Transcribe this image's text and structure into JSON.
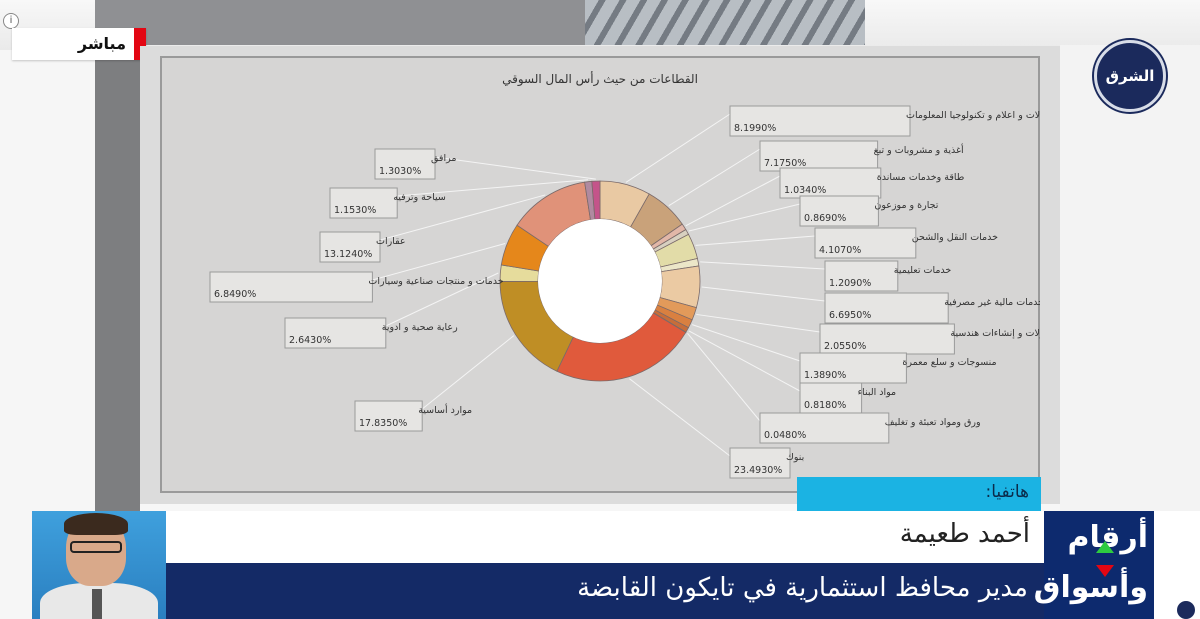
{
  "live": {
    "label": "مباشر"
  },
  "broadcaster": {
    "logo_text": "الشرق",
    "info_glyph": "i"
  },
  "caller": {
    "tag": "هاتفيا:",
    "name": "أحمد طعيمة",
    "title": "مدير محافظ استثمارية في تايكون القابضة"
  },
  "brand": {
    "line1": "أرقام",
    "line2": "وأسواق"
  },
  "chart_data": {
    "type": "pie",
    "title": "القطاعات من حيث رأس المال السوقي",
    "colors": {
      "outline": "#7a6a6a",
      "label_box": "#e6e5e3",
      "label_border": "#9a9a9a"
    },
    "slices": [
      {
        "label": "اتصالات و اعلام و تكنولوجيا المعلومات",
        "value": "8.1990%",
        "v": 8.199,
        "color": "#e9c9a3"
      },
      {
        "label": "أغذية و مشروبات و تبغ",
        "value": "7.1750%",
        "v": 7.175,
        "color": "#c9a27a"
      },
      {
        "label": "طاقة وخدمات مساندة",
        "value": "1.0340%",
        "v": 1.034,
        "color": "#e2b7a8"
      },
      {
        "label": "تجارة و موزعون",
        "value": "0.8690%",
        "v": 0.869,
        "color": "#d8d0c0"
      },
      {
        "label": "خدمات النقل والشحن",
        "value": "4.1070%",
        "v": 4.107,
        "color": "#e2dca8"
      },
      {
        "label": "خدمات تعليمية",
        "value": "1.2090%",
        "v": 1.209,
        "color": "#ece6c8"
      },
      {
        "label": "خدمات مالية غير مصرفية",
        "value": "6.6950%",
        "v": 6.695,
        "color": "#ebcaa3"
      },
      {
        "label": "مقاولات و إنشاءات هندسية",
        "value": "2.0550%",
        "v": 2.055,
        "color": "#e29a5a"
      },
      {
        "label": "منسوجات و سلع معمرة",
        "value": "1.3890%",
        "v": 1.389,
        "color": "#d98040"
      },
      {
        "label": "مواد البناء",
        "value": "0.8180%",
        "v": 0.818,
        "color": "#c76d3a"
      },
      {
        "label": "ورق ومواد تعبئة و تغليف",
        "value": "0.0480%",
        "v": 0.048,
        "color": "#d9603c"
      },
      {
        "label": "بنوك",
        "value": "23.4930%",
        "v": 23.493,
        "color": "#e05a3c"
      },
      {
        "label": "موارد أساسية",
        "value": "17.8350%",
        "v": 17.835,
        "color": "#bf8e25"
      },
      {
        "label": "رعاية صحية و ادوية",
        "value": "2.6430%",
        "v": 2.643,
        "color": "#e6dc9c"
      },
      {
        "label": "خدمات و منتجات صناعية وسيارات",
        "value": "6.8490%",
        "v": 6.849,
        "color": "#e5871b"
      },
      {
        "label": "عقارات",
        "value": "13.1240%",
        "v": 13.124,
        "color": "#e09279"
      },
      {
        "label": "سياحة وترفيه",
        "value": "1.1530%",
        "v": 1.153,
        "color": "#b08aa0"
      },
      {
        "label": "مرافق",
        "value": "1.3030%",
        "v": 1.303,
        "color": "#c4548a"
      }
    ]
  }
}
